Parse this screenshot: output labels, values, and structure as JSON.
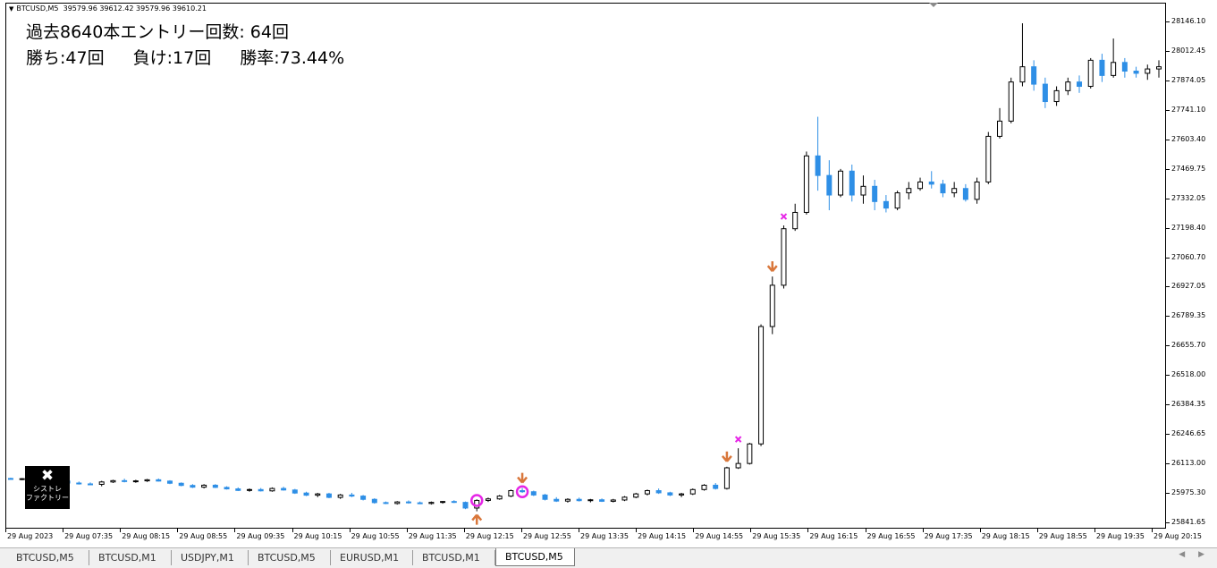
{
  "chart": {
    "symbol": "BTCUSD,M5",
    "ohlc": "39579.96 39612.42 39579.96 39610.21",
    "stats_line1": "過去8640本エントリー回数: 64回",
    "stats_wins": "勝ち:47回",
    "stats_losses": "負け:17回",
    "stats_winrate": "勝率:73.44%",
    "logo_text_1": "シストレ",
    "logo_text_2": "ファクトリー"
  },
  "price_axis": [
    "28146.10",
    "28012.45",
    "27874.05",
    "27741.10",
    "27603.40",
    "27469.75",
    "27332.05",
    "27198.40",
    "27060.70",
    "26927.05",
    "26789.35",
    "26655.70",
    "26518.00",
    "26384.35",
    "26246.65",
    "26113.00",
    "25975.30",
    "25841.65"
  ],
  "time_axis": [
    "29 Aug 2023",
    "29 Aug 07:35",
    "29 Aug 08:15",
    "29 Aug 08:55",
    "29 Aug 09:35",
    "29 Aug 10:15",
    "29 Aug 10:55",
    "29 Aug 11:35",
    "29 Aug 12:15",
    "29 Aug 12:55",
    "29 Aug 13:35",
    "29 Aug 14:15",
    "29 Aug 14:55",
    "29 Aug 15:35",
    "29 Aug 16:15",
    "29 Aug 16:55",
    "29 Aug 17:35",
    "29 Aug 18:15",
    "29 Aug 18:55",
    "29 Aug 19:35",
    "29 Aug 20:15"
  ],
  "tabs": [
    "BTCUSD,M5",
    "BTCUSD,M1",
    "USDJPY,M1",
    "BTCUSD,M5",
    "EURUSD,M1",
    "BTCUSD,M1",
    "BTCUSD,M5"
  ],
  "active_tab_index": 6,
  "colors": {
    "up_fill": "#ffffff",
    "down_fill": "#2e8fe6",
    "outline": "#000000",
    "entry_arrow": "#d9773b",
    "win_circle": "#e626e6",
    "loss_cross": "#e626e6"
  },
  "chart_data": {
    "type": "candlestick",
    "ylim": [
      25841.65,
      28146.1
    ],
    "candles": [
      {
        "t": 0,
        "o": 26056,
        "h": 26060,
        "l": 26050,
        "c": 26052
      },
      {
        "t": 1,
        "o": 26052,
        "h": 26058,
        "l": 26048,
        "c": 26055
      },
      {
        "t": 2,
        "o": 26055,
        "h": 26062,
        "l": 26050,
        "c": 26053
      },
      {
        "t": 3,
        "o": 26053,
        "h": 26060,
        "l": 26045,
        "c": 26048
      },
      {
        "t": 4,
        "o": 26048,
        "h": 26055,
        "l": 26040,
        "c": 26044
      },
      {
        "t": 5,
        "o": 26044,
        "h": 26050,
        "l": 26030,
        "c": 26035
      },
      {
        "t": 6,
        "o": 26035,
        "h": 26042,
        "l": 26028,
        "c": 26031
      },
      {
        "t": 7,
        "o": 26031,
        "h": 26038,
        "l": 26025,
        "c": 26029
      },
      {
        "t": 8,
        "o": 26029,
        "h": 26045,
        "l": 26020,
        "c": 26040
      },
      {
        "t": 9,
        "o": 26040,
        "h": 26050,
        "l": 26035,
        "c": 26046
      },
      {
        "t": 10,
        "o": 26046,
        "h": 26055,
        "l": 26038,
        "c": 26042
      },
      {
        "t": 11,
        "o": 26042,
        "h": 26050,
        "l": 26036,
        "c": 26045
      },
      {
        "t": 12,
        "o": 26045,
        "h": 26054,
        "l": 26040,
        "c": 26050
      },
      {
        "t": 13,
        "o": 26050,
        "h": 26056,
        "l": 26042,
        "c": 26044
      },
      {
        "t": 14,
        "o": 26044,
        "h": 26048,
        "l": 26030,
        "c": 26034
      },
      {
        "t": 15,
        "o": 26034,
        "h": 26038,
        "l": 26020,
        "c": 26024
      },
      {
        "t": 16,
        "o": 26024,
        "h": 26030,
        "l": 26012,
        "c": 26016
      },
      {
        "t": 17,
        "o": 26016,
        "h": 26030,
        "l": 26010,
        "c": 26025
      },
      {
        "t": 18,
        "o": 26025,
        "h": 26030,
        "l": 26012,
        "c": 26015
      },
      {
        "t": 19,
        "o": 26015,
        "h": 26020,
        "l": 26005,
        "c": 26008
      },
      {
        "t": 20,
        "o": 26008,
        "h": 26015,
        "l": 25998,
        "c": 26001
      },
      {
        "t": 21,
        "o": 26001,
        "h": 26010,
        "l": 25995,
        "c": 26005
      },
      {
        "t": 22,
        "o": 26005,
        "h": 26012,
        "l": 25996,
        "c": 25999
      },
      {
        "t": 23,
        "o": 25999,
        "h": 26015,
        "l": 25995,
        "c": 26010
      },
      {
        "t": 24,
        "o": 26010,
        "h": 26018,
        "l": 26000,
        "c": 26003
      },
      {
        "t": 25,
        "o": 26003,
        "h": 26008,
        "l": 25985,
        "c": 25989
      },
      {
        "t": 26,
        "o": 25989,
        "h": 25995,
        "l": 25975,
        "c": 25979
      },
      {
        "t": 27,
        "o": 25979,
        "h": 25990,
        "l": 25970,
        "c": 25985
      },
      {
        "t": 28,
        "o": 25985,
        "h": 25990,
        "l": 25965,
        "c": 25969
      },
      {
        "t": 29,
        "o": 25969,
        "h": 25985,
        "l": 25962,
        "c": 25980
      },
      {
        "t": 30,
        "o": 25980,
        "h": 25990,
        "l": 25970,
        "c": 25975
      },
      {
        "t": 31,
        "o": 25975,
        "h": 25980,
        "l": 25955,
        "c": 25960
      },
      {
        "t": 32,
        "o": 25960,
        "h": 25965,
        "l": 25940,
        "c": 25945
      },
      {
        "t": 33,
        "o": 25945,
        "h": 25950,
        "l": 25938,
        "c": 25941
      },
      {
        "t": 34,
        "o": 25941,
        "h": 25952,
        "l": 25936,
        "c": 25948
      },
      {
        "t": 35,
        "o": 25948,
        "h": 25955,
        "l": 25940,
        "c": 25944
      },
      {
        "t": 36,
        "o": 25944,
        "h": 25950,
        "l": 25938,
        "c": 25941
      },
      {
        "t": 37,
        "o": 25941,
        "h": 25950,
        "l": 25936,
        "c": 25946
      },
      {
        "t": 38,
        "o": 25946,
        "h": 25952,
        "l": 25940,
        "c": 25950
      },
      {
        "t": 39,
        "o": 25950,
        "h": 25956,
        "l": 25943,
        "c": 25946
      },
      {
        "t": 40,
        "o": 25946,
        "h": 25950,
        "l": 25915,
        "c": 25920
      },
      {
        "t": 41,
        "o": 25920,
        "h": 25960,
        "l": 25905,
        "c": 25955
      },
      {
        "t": 42,
        "o": 25955,
        "h": 25968,
        "l": 25948,
        "c": 25962
      },
      {
        "t": 43,
        "o": 25962,
        "h": 25980,
        "l": 25958,
        "c": 25975
      },
      {
        "t": 44,
        "o": 25975,
        "h": 26005,
        "l": 25970,
        "c": 26000
      },
      {
        "t": 45,
        "o": 26000,
        "h": 26012,
        "l": 25990,
        "c": 25995
      },
      {
        "t": 46,
        "o": 25995,
        "h": 26000,
        "l": 25975,
        "c": 25980
      },
      {
        "t": 47,
        "o": 25980,
        "h": 25985,
        "l": 25955,
        "c": 25960
      },
      {
        "t": 48,
        "o": 25960,
        "h": 25970,
        "l": 25948,
        "c": 25952
      },
      {
        "t": 49,
        "o": 25952,
        "h": 25965,
        "l": 25945,
        "c": 25960
      },
      {
        "t": 50,
        "o": 25960,
        "h": 25968,
        "l": 25950,
        "c": 25954
      },
      {
        "t": 51,
        "o": 25954,
        "h": 25962,
        "l": 25946,
        "c": 25958
      },
      {
        "t": 52,
        "o": 25958,
        "h": 25964,
        "l": 25948,
        "c": 25951
      },
      {
        "t": 53,
        "o": 25951,
        "h": 25962,
        "l": 25946,
        "c": 25957
      },
      {
        "t": 54,
        "o": 25957,
        "h": 25975,
        "l": 25952,
        "c": 25970
      },
      {
        "t": 55,
        "o": 25970,
        "h": 25990,
        "l": 25965,
        "c": 25985
      },
      {
        "t": 56,
        "o": 25985,
        "h": 26005,
        "l": 25978,
        "c": 26000
      },
      {
        "t": 57,
        "o": 26000,
        "h": 26010,
        "l": 25985,
        "c": 25990
      },
      {
        "t": 58,
        "o": 25990,
        "h": 25995,
        "l": 25975,
        "c": 25980
      },
      {
        "t": 59,
        "o": 25980,
        "h": 25990,
        "l": 25970,
        "c": 25985
      },
      {
        "t": 60,
        "o": 25985,
        "h": 26010,
        "l": 25980,
        "c": 26005
      },
      {
        "t": 61,
        "o": 26005,
        "h": 26030,
        "l": 26000,
        "c": 26025
      },
      {
        "t": 62,
        "o": 26025,
        "h": 26035,
        "l": 26005,
        "c": 26010
      },
      {
        "t": 63,
        "o": 26010,
        "h": 26110,
        "l": 26005,
        "c": 26105
      },
      {
        "t": 64,
        "o": 26105,
        "h": 26195,
        "l": 26100,
        "c": 26125
      },
      {
        "t": 65,
        "o": 26125,
        "h": 26220,
        "l": 26120,
        "c": 26215
      },
      {
        "t": 66,
        "o": 26215,
        "h": 26765,
        "l": 26205,
        "c": 26755
      },
      {
        "t": 67,
        "o": 26755,
        "h": 26985,
        "l": 26720,
        "c": 26945
      },
      {
        "t": 68,
        "o": 26945,
        "h": 27220,
        "l": 26930,
        "c": 27205
      },
      {
        "t": 69,
        "o": 27205,
        "h": 27320,
        "l": 27195,
        "c": 27280
      },
      {
        "t": 70,
        "o": 27280,
        "h": 27560,
        "l": 27270,
        "c": 27540
      },
      {
        "t": 71,
        "o": 27540,
        "h": 27720,
        "l": 27380,
        "c": 27450
      },
      {
        "t": 72,
        "o": 27450,
        "h": 27520,
        "l": 27290,
        "c": 27360
      },
      {
        "t": 73,
        "o": 27360,
        "h": 27480,
        "l": 27350,
        "c": 27470
      },
      {
        "t": 74,
        "o": 27470,
        "h": 27500,
        "l": 27330,
        "c": 27360
      },
      {
        "t": 75,
        "o": 27360,
        "h": 27450,
        "l": 27320,
        "c": 27400
      },
      {
        "t": 76,
        "o": 27400,
        "h": 27430,
        "l": 27290,
        "c": 27330
      },
      {
        "t": 77,
        "o": 27330,
        "h": 27360,
        "l": 27280,
        "c": 27300
      },
      {
        "t": 78,
        "o": 27300,
        "h": 27380,
        "l": 27290,
        "c": 27370
      },
      {
        "t": 79,
        "o": 27370,
        "h": 27420,
        "l": 27340,
        "c": 27390
      },
      {
        "t": 80,
        "o": 27390,
        "h": 27440,
        "l": 27380,
        "c": 27420
      },
      {
        "t": 81,
        "o": 27420,
        "h": 27470,
        "l": 27390,
        "c": 27410
      },
      {
        "t": 82,
        "o": 27410,
        "h": 27430,
        "l": 27350,
        "c": 27370
      },
      {
        "t": 83,
        "o": 27370,
        "h": 27420,
        "l": 27350,
        "c": 27390
      },
      {
        "t": 84,
        "o": 27390,
        "h": 27410,
        "l": 27330,
        "c": 27340
      },
      {
        "t": 85,
        "o": 27340,
        "h": 27440,
        "l": 27320,
        "c": 27420
      },
      {
        "t": 86,
        "o": 27420,
        "h": 27650,
        "l": 27410,
        "c": 27630
      },
      {
        "t": 87,
        "o": 27630,
        "h": 27760,
        "l": 27620,
        "c": 27700
      },
      {
        "t": 88,
        "o": 27700,
        "h": 27900,
        "l": 27690,
        "c": 27880
      },
      {
        "t": 89,
        "o": 27880,
        "h": 28150,
        "l": 27860,
        "c": 27950
      },
      {
        "t": 90,
        "o": 27950,
        "h": 27980,
        "l": 27840,
        "c": 27870
      },
      {
        "t": 91,
        "o": 27870,
        "h": 27900,
        "l": 27760,
        "c": 27790
      },
      {
        "t": 92,
        "o": 27790,
        "h": 27860,
        "l": 27770,
        "c": 27840
      },
      {
        "t": 93,
        "o": 27840,
        "h": 27900,
        "l": 27820,
        "c": 27880
      },
      {
        "t": 94,
        "o": 27880,
        "h": 27910,
        "l": 27830,
        "c": 27860
      },
      {
        "t": 95,
        "o": 27860,
        "h": 27990,
        "l": 27850,
        "c": 27980
      },
      {
        "t": 96,
        "o": 27980,
        "h": 28010,
        "l": 27880,
        "c": 27910
      },
      {
        "t": 97,
        "o": 27910,
        "h": 28080,
        "l": 27900,
        "c": 27970
      },
      {
        "t": 98,
        "o": 27970,
        "h": 27990,
        "l": 27900,
        "c": 27930
      },
      {
        "t": 99,
        "o": 27930,
        "h": 27950,
        "l": 27900,
        "c": 27920
      },
      {
        "t": 100,
        "o": 27920,
        "h": 27960,
        "l": 27890,
        "c": 27940
      },
      {
        "t": 101,
        "o": 27940,
        "h": 27980,
        "l": 27900,
        "c": 27950
      }
    ],
    "signals": [
      {
        "t": 41,
        "type": "buy-arrow"
      },
      {
        "t": 41,
        "type": "win-circle"
      },
      {
        "t": 45,
        "type": "sell-arrow"
      },
      {
        "t": 45,
        "type": "win-circle"
      },
      {
        "t": 63,
        "type": "sell-arrow"
      },
      {
        "t": 64,
        "type": "loss-cross"
      },
      {
        "t": 67,
        "type": "sell-arrow"
      },
      {
        "t": 68,
        "type": "loss-cross"
      }
    ]
  }
}
